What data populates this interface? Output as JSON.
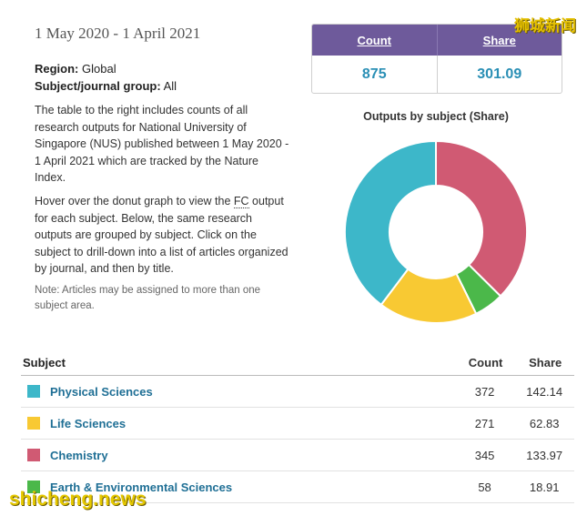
{
  "header": {
    "date_range": "1 May 2020 - 1 April 2021",
    "region_label": "Region:",
    "region_value": "Global",
    "group_label": "Subject/journal group:",
    "group_value": "All"
  },
  "description": {
    "para1": "The table to the right includes counts of all research outputs for National University of Singapore (NUS) published between 1 May 2020 - 1 April 2021 which are tracked by the Nature Index.",
    "para2_before": "Hover over the donut graph to view the ",
    "para2_abbr": "FC",
    "para2_after": " output for each subject. Below, the same research outputs are grouped by subject. Click on the subject to drill-down into a list of articles organized by journal, and then by title.",
    "note": "Note: Articles may be assigned to more than one subject area."
  },
  "summary": {
    "count_label": "Count",
    "share_label": "Share",
    "count_value": "875",
    "share_value": "301.09"
  },
  "chart_data": {
    "type": "pie",
    "title": "Outputs by subject (Share)",
    "categories": [
      "Chemistry",
      "Earth & Environmental Sciences",
      "Life Sciences",
      "Physical Sciences"
    ],
    "values": [
      133.97,
      18.91,
      62.83,
      142.14
    ],
    "colors": [
      "#d05a73",
      "#4bb84a",
      "#f8c933",
      "#3db7c9"
    ]
  },
  "table": {
    "headers": {
      "subject": "Subject",
      "count": "Count",
      "share": "Share"
    },
    "rows": [
      {
        "subject": "Physical Sciences",
        "count": "372",
        "share": "142.14",
        "color": "#3db7c9"
      },
      {
        "subject": "Life Sciences",
        "count": "271",
        "share": "62.83",
        "color": "#f8c933"
      },
      {
        "subject": "Chemistry",
        "count": "345",
        "share": "133.97",
        "color": "#d05a73"
      },
      {
        "subject": "Earth & Environmental Sciences",
        "count": "58",
        "share": "18.91",
        "color": "#4bb84a"
      }
    ]
  },
  "watermarks": {
    "top": "狮城新闻",
    "bottom": "shicheng.news"
  }
}
